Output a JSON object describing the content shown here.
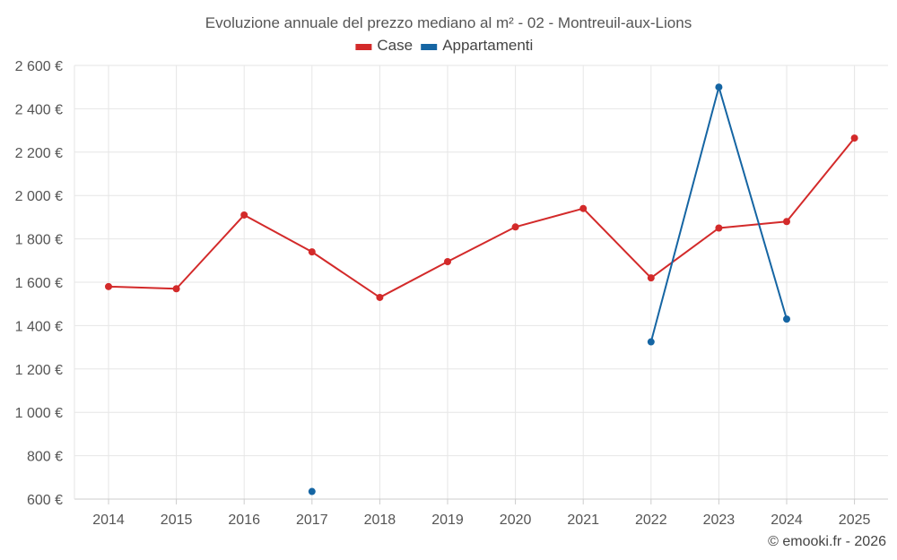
{
  "chart_data": {
    "type": "line",
    "title": "Evoluzione annuale del prezzo mediano al m² - 02 - Montreuil-aux-Lions",
    "categories": [
      "2014",
      "2015",
      "2016",
      "2017",
      "2018",
      "2019",
      "2020",
      "2021",
      "2022",
      "2023",
      "2024",
      "2025"
    ],
    "y_ticks": [
      600,
      800,
      1000,
      1200,
      1400,
      1600,
      1800,
      2000,
      2200,
      2400,
      2600
    ],
    "y_tick_labels": [
      "600 €",
      "800 €",
      "1 000 €",
      "1 200 €",
      "1 400 €",
      "1 600 €",
      "1 800 €",
      "2 000 €",
      "2 200 €",
      "2 400 €",
      "2 600 €"
    ],
    "ylim": [
      600,
      2600
    ],
    "xlabel": "",
    "ylabel": "",
    "grid": true,
    "legend_position": "top-center",
    "series": [
      {
        "name": "Case",
        "color": "#d32a2a",
        "values": [
          1580,
          1570,
          1910,
          1740,
          1530,
          1695,
          1855,
          1940,
          1620,
          1850,
          1880,
          2265
        ]
      },
      {
        "name": "Appartamenti",
        "color": "#1565a3",
        "values": [
          null,
          null,
          null,
          635,
          null,
          null,
          null,
          null,
          1325,
          2500,
          1430,
          null
        ]
      }
    ],
    "credit": "© emooki.fr - 2026"
  }
}
